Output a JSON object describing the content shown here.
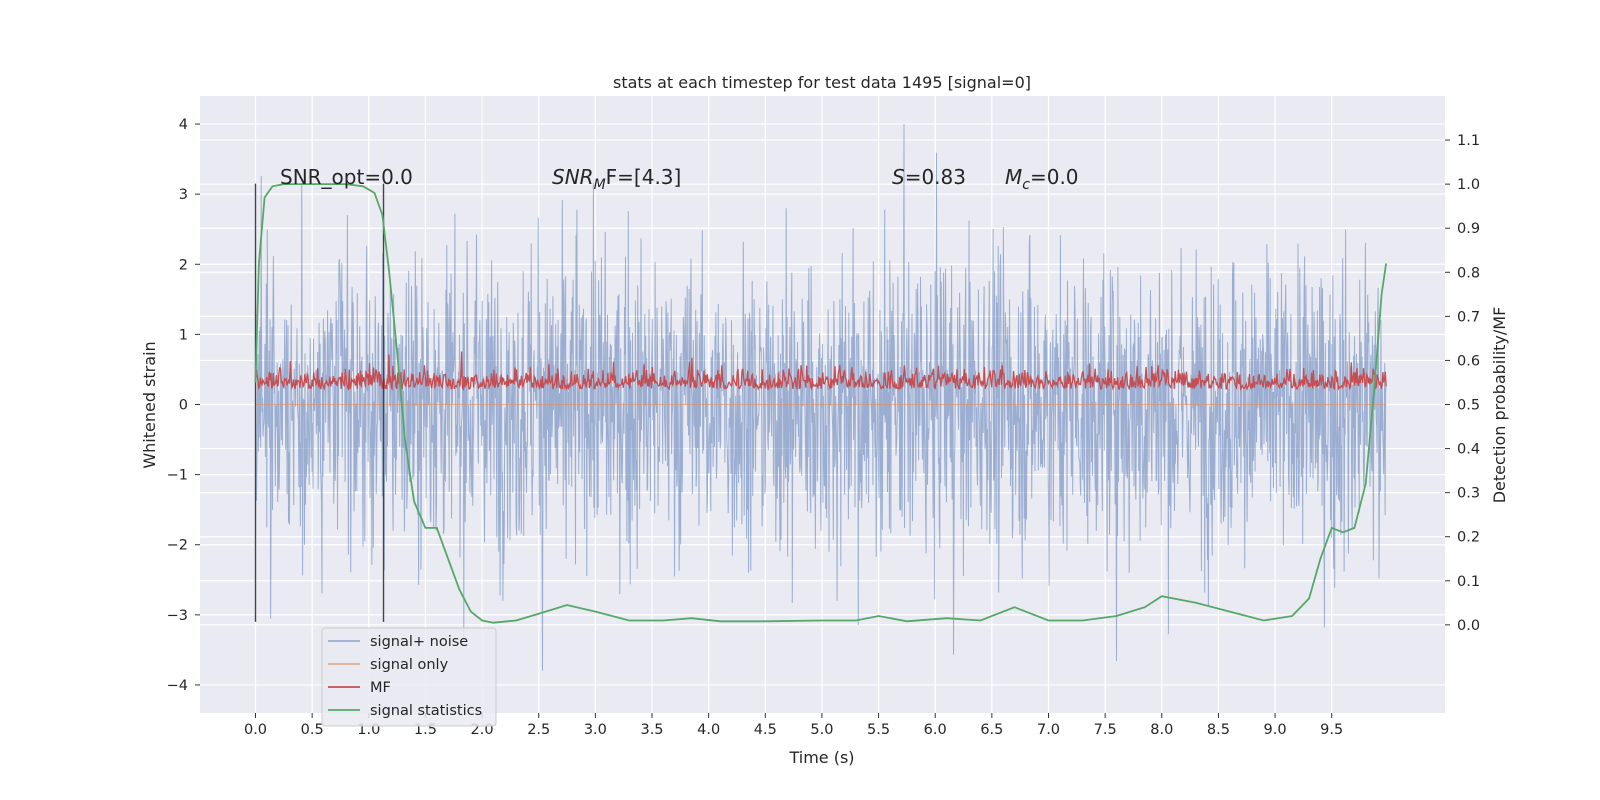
{
  "chart_data": {
    "type": "line",
    "title": "stats at each timestep for test data 1495 [signal=0]",
    "xlabel": "Time (s)",
    "ylabel_left": "Whitened strain",
    "ylabel_right": "Detection probability/MF",
    "xlim": [
      -0.49,
      10.5
    ],
    "ylim_left": [
      -4.4,
      4.4
    ],
    "ylim_right": [
      -0.2,
      1.2
    ],
    "x_ticks": [
      "0.0",
      "0.5",
      "1.0",
      "1.5",
      "2.0",
      "2.5",
      "3.0",
      "3.5",
      "4.0",
      "4.5",
      "5.0",
      "5.5",
      "6.0",
      "6.5",
      "7.0",
      "7.5",
      "8.0",
      "8.5",
      "9.0",
      "9.5"
    ],
    "y_ticks_left": [
      "−4",
      "−3",
      "−2",
      "−1",
      "0",
      "1",
      "2",
      "3",
      "4"
    ],
    "y_ticks_right": [
      "0.0",
      "0.1",
      "0.2",
      "0.3",
      "0.4",
      "0.5",
      "0.6",
      "0.7",
      "0.8",
      "0.9",
      "1.0",
      "1.1"
    ],
    "grid": true,
    "legend_placement": "lower-left",
    "annotations": {
      "snr_opt": "SNR_opt=0.0",
      "snr_mf_base": "SNR",
      "snr_mf_sub": "M",
      "snr_mf_tail": "F=[4.3]",
      "s_sym": "S",
      "s_val": "=0.83",
      "mc_base": "M",
      "mc_sub": "c",
      "mc_val": "=0.0"
    },
    "vertical_markers": [
      0.0,
      1.13
    ],
    "series": [
      {
        "name": "signal+ noise",
        "axis": "left",
        "color": "#4c72b0",
        "description_values": {
          "x_range": [
            0.0,
            9.98
          ],
          "approx_range": [
            -3.8,
            4.0
          ]
        }
      },
      {
        "name": "signal only",
        "axis": "left",
        "color": "#dd8452",
        "x": [
          0.0,
          9.98
        ],
        "y": [
          0.0,
          0.0
        ]
      },
      {
        "name": "MF",
        "axis": "right",
        "color": "#c44e52",
        "description_values": {
          "x_range": [
            0.0,
            9.98
          ],
          "approx_range": [
            0.5,
            0.63
          ]
        }
      },
      {
        "name": "signal statistics",
        "axis": "right",
        "color": "#55a868",
        "x": [
          0.0,
          0.03,
          0.08,
          0.15,
          0.25,
          0.4,
          0.6,
          0.8,
          0.95,
          1.05,
          1.12,
          1.18,
          1.25,
          1.32,
          1.4,
          1.5,
          1.6,
          1.7,
          1.8,
          1.9,
          2.0,
          2.1,
          2.3,
          2.5,
          2.75,
          3.0,
          3.3,
          3.6,
          3.85,
          4.1,
          4.5,
          5.0,
          5.3,
          5.5,
          5.75,
          6.1,
          6.4,
          6.7,
          7.0,
          7.3,
          7.6,
          7.85,
          8.0,
          8.3,
          8.6,
          8.9,
          9.15,
          9.3,
          9.4,
          9.5,
          9.6,
          9.7,
          9.8,
          9.88,
          9.94,
          9.98
        ],
        "y": [
          0.55,
          0.82,
          0.97,
          0.995,
          1.0,
          1.0,
          1.0,
          1.0,
          0.995,
          0.98,
          0.93,
          0.8,
          0.62,
          0.42,
          0.28,
          0.22,
          0.22,
          0.15,
          0.08,
          0.03,
          0.01,
          0.005,
          0.01,
          0.025,
          0.045,
          0.03,
          0.01,
          0.01,
          0.015,
          0.008,
          0.008,
          0.01,
          0.01,
          0.02,
          0.008,
          0.015,
          0.01,
          0.04,
          0.01,
          0.01,
          0.02,
          0.04,
          0.065,
          0.05,
          0.03,
          0.01,
          0.02,
          0.06,
          0.15,
          0.22,
          0.21,
          0.22,
          0.32,
          0.55,
          0.75,
          0.82
        ]
      }
    ]
  }
}
